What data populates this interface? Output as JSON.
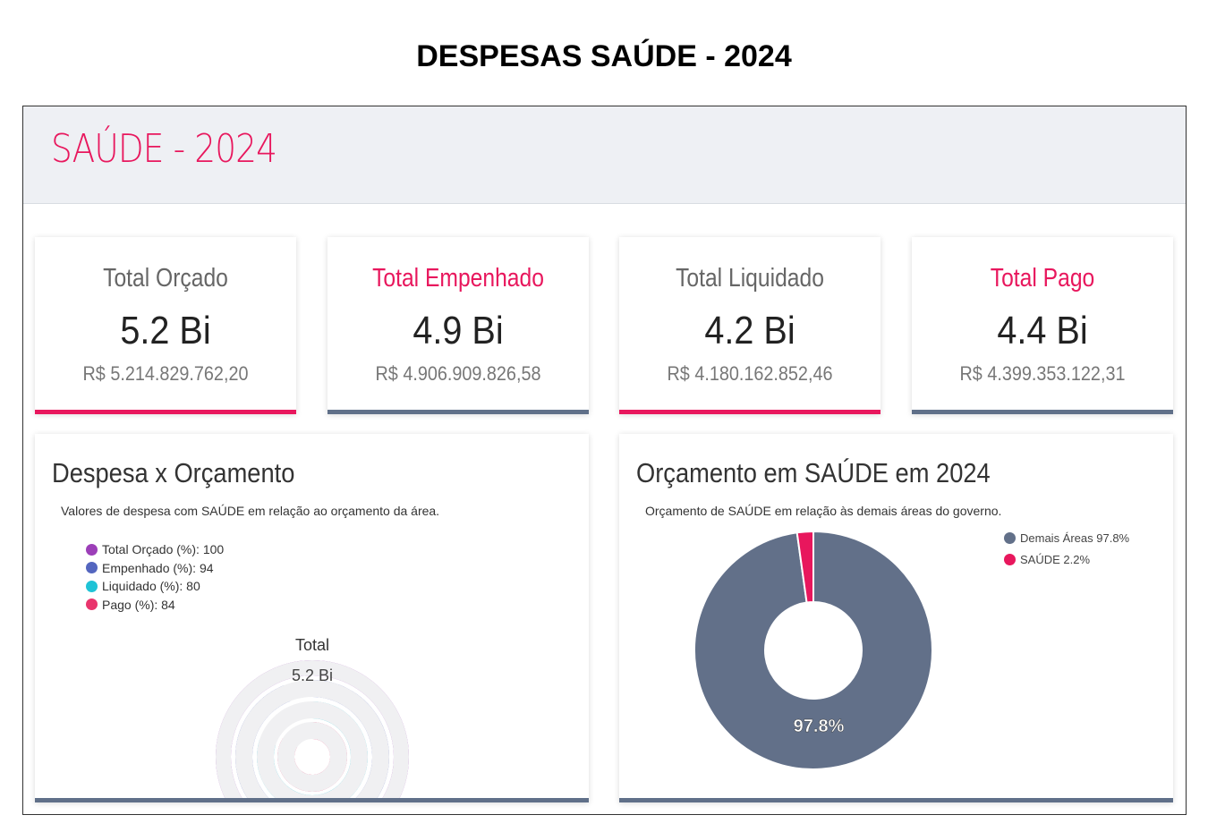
{
  "page_title": "DESPESAS SAÚDE - 2024",
  "header": {
    "title": "SAÚDE - 2024",
    "accent": "#e8175d"
  },
  "cards": [
    {
      "title": "Total Orçado",
      "value": "5.2 Bi",
      "amount": "R$  5.214.829.762,20",
      "title_color": "#666",
      "bar_color": "#e8175d"
    },
    {
      "title": "Total Empenhado",
      "value": "4.9 Bi",
      "amount": "R$  4.906.909.826,58",
      "title_color": "#e8175d",
      "bar_color": "#607089"
    },
    {
      "title": "Total Liquidado",
      "value": "4.2 Bi",
      "amount": "R$  4.180.162.852,46",
      "title_color": "#666",
      "bar_color": "#e8175d"
    },
    {
      "title": "Total Pago",
      "value": "4.4 Bi",
      "amount": "R$  4.399.353.122,31",
      "title_color": "#e8175d",
      "bar_color": "#607089"
    }
  ],
  "chart_data": [
    {
      "type": "radialBar",
      "title": "Despesa x Orçamento",
      "subtitle": "Valores de despesa com SAÚDE em relação ao orçamento da área.",
      "center_label": "Total",
      "center_value": "5.2 Bi",
      "legend_position": "top-left",
      "series": [
        {
          "name": "Total Orçado (%): 100",
          "value": 100,
          "color": "#9c3fb8"
        },
        {
          "name": "Empenhado (%): 94",
          "value": 94,
          "color": "#5466bf"
        },
        {
          "name": "Liquidado (%): 80",
          "value": 80,
          "color": "#1fc3d6"
        },
        {
          "name": "Pago (%): 84",
          "value": 84,
          "color": "#e9356d"
        }
      ]
    },
    {
      "type": "pie",
      "title": "Orçamento em SAÚDE em 2024",
      "subtitle": "Orçamento de SAÚDE em relação às demais áreas do governo.",
      "legend_position": "top-right",
      "slices": [
        {
          "name": "SAÚDE 2.2%",
          "value": 2.2,
          "color": "#e8175d"
        },
        {
          "name": "Demais Áreas 97.8%",
          "value": 97.8,
          "color": "#627089",
          "label": "97.8%"
        }
      ]
    }
  ]
}
